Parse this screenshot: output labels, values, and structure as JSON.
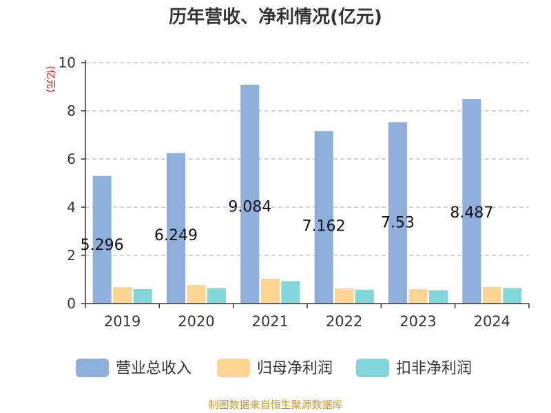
{
  "chart_data": {
    "type": "bar",
    "title": "历年营收、净利情况(亿元)",
    "ylabel": "(亿元)",
    "xlabel": "",
    "categories": [
      "2019",
      "2020",
      "2021",
      "2022",
      "2023",
      "2024"
    ],
    "ylim": [
      0,
      10
    ],
    "yticks": [
      0,
      2,
      4,
      6,
      8,
      10
    ],
    "grid": true,
    "legend_position": "bottom",
    "series": [
      {
        "name": "营业总收入",
        "color": "#8eaedb",
        "values": [
          5.296,
          6.249,
          9.084,
          7.162,
          7.53,
          8.487
        ],
        "labels": [
          "5.296",
          "6.249",
          "9.084",
          "7.162",
          "7.53",
          "8.487"
        ]
      },
      {
        "name": "归母净利润",
        "color": "#fdd592",
        "values": [
          0.68,
          0.77,
          1.03,
          0.63,
          0.6,
          0.69
        ]
      },
      {
        "name": "扣非净利润",
        "color": "#82d5d8",
        "values": [
          0.6,
          0.64,
          0.93,
          0.58,
          0.55,
          0.64
        ]
      }
    ],
    "source": "制图数据来自恒生聚源数据库"
  }
}
